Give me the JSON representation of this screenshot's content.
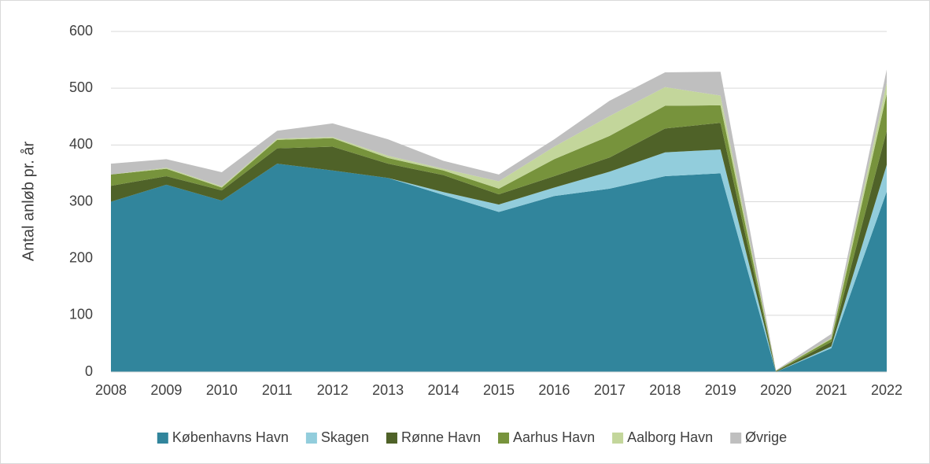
{
  "chart_data": {
    "type": "stacked_area",
    "y_label": "Antal anløb pr. år",
    "categories": [
      "2008",
      "2009",
      "2010",
      "2011",
      "2012",
      "2013",
      "2014",
      "2015",
      "2016",
      "2017",
      "2018",
      "2019",
      "2020",
      "2021",
      "2022"
    ],
    "series": [
      {
        "name": "Københavns Havn",
        "color": "#31859c",
        "values": [
          300,
          330,
          302,
          367,
          355,
          342,
          312,
          282,
          310,
          323,
          345,
          350,
          0,
          42,
          318
        ]
      },
      {
        "name": "Skagen",
        "color": "#92cddc",
        "values": [
          0,
          0,
          0,
          0,
          0,
          0,
          5,
          13,
          15,
          30,
          42,
          42,
          0,
          3,
          47
        ]
      },
      {
        "name": "Rønne Havn",
        "color": "#4f6228",
        "values": [
          28,
          15,
          18,
          27,
          42,
          25,
          30,
          18,
          20,
          25,
          42,
          47,
          1,
          8,
          60
        ]
      },
      {
        "name": "Aarhus Havn",
        "color": "#77933c",
        "values": [
          20,
          13,
          5,
          15,
          15,
          10,
          8,
          10,
          30,
          38,
          40,
          31,
          1,
          5,
          65
        ]
      },
      {
        "name": "Aalborg Havn",
        "color": "#c3d69b",
        "values": [
          0,
          2,
          2,
          2,
          2,
          4,
          3,
          13,
          22,
          35,
          33,
          17,
          0,
          2,
          20
        ]
      },
      {
        "name": "Øvrige",
        "color": "#bfbfbf",
        "values": [
          19,
          15,
          25,
          14,
          24,
          29,
          14,
          12,
          13,
          27,
          26,
          42,
          1,
          7,
          23
        ]
      }
    ],
    "ylim": [
      0,
      600
    ],
    "yticks": [
      0,
      100,
      200,
      300,
      400,
      500,
      600
    ],
    "grid": true,
    "legend": "bottom"
  }
}
